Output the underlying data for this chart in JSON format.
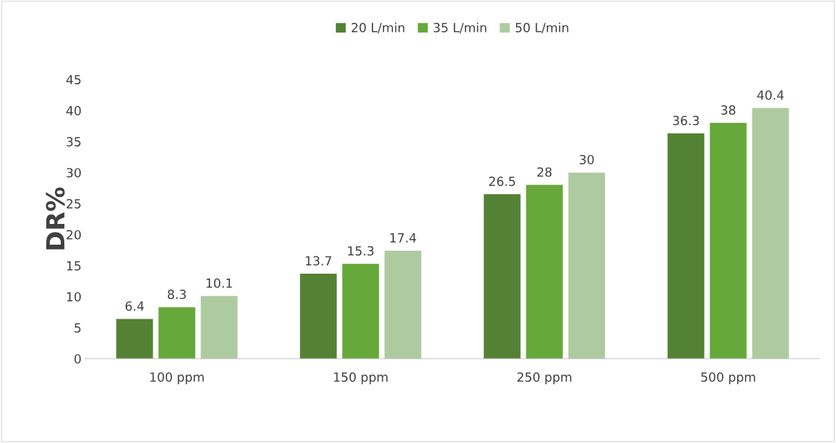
{
  "chart_data": {
    "type": "bar",
    "ylabel": "DR%",
    "categories": [
      "100 ppm",
      "150 ppm",
      "250 ppm",
      "500 ppm"
    ],
    "series": [
      {
        "name": "20 L/min",
        "color": "#548235",
        "values": [
          6.4,
          13.7,
          26.5,
          36.3
        ]
      },
      {
        "name": "35 L/min",
        "color": "#66a83a",
        "values": [
          8.3,
          15.3,
          28,
          38
        ]
      },
      {
        "name": "50 L/min",
        "color": "#aecba0",
        "values": [
          10.1,
          17.4,
          30,
          40.4
        ]
      }
    ],
    "ylim": [
      0,
      45
    ],
    "yticks": [
      0,
      5,
      10,
      15,
      20,
      25,
      30,
      35,
      40,
      45
    ],
    "data_labels": true,
    "legend": "top",
    "grid": false
  }
}
